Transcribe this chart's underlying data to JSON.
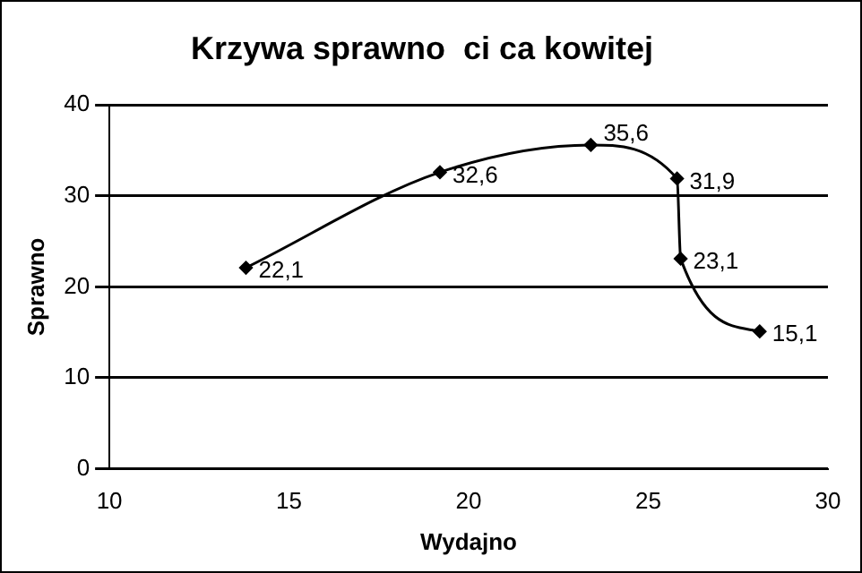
{
  "chart_data": {
    "type": "line",
    "title": "Krzywa sprawno  ci ca kowitej",
    "xlabel": "Wydajno",
    "ylabel": "Sprawno",
    "x": [
      13.8,
      19.2,
      23.4,
      25.8,
      25.9,
      28.1
    ],
    "values": [
      22.1,
      32.6,
      35.6,
      31.9,
      23.1,
      15.1
    ],
    "value_labels": [
      "22,1",
      "32,6",
      "35,6",
      "31,9",
      "23,1",
      "15,1"
    ],
    "color": "#000000",
    "marker": "diamond",
    "line_style": "solid",
    "xlim": [
      10,
      30
    ],
    "xticks": [
      10,
      15,
      20,
      25,
      30
    ],
    "ylim": [
      0,
      40
    ],
    "yticks": [
      0,
      10,
      20,
      30,
      40
    ],
    "grid": "y",
    "legend": false
  }
}
